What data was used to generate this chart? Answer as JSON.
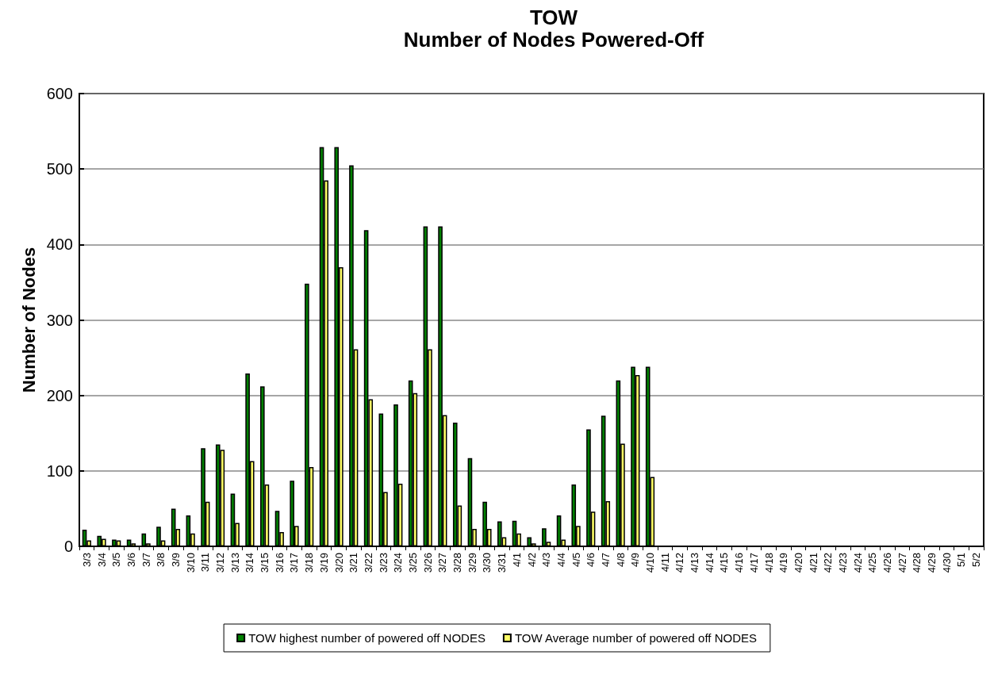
{
  "chart_data": {
    "type": "bar",
    "title": "TOW",
    "subtitle": "Number of Nodes Powered-Off",
    "ylabel": "Number of Nodes",
    "categories": [
      "3/3",
      "3/4",
      "3/5",
      "3/6",
      "3/7",
      "3/8",
      "3/9",
      "3/10",
      "3/11",
      "3/12",
      "3/13",
      "3/14",
      "3/15",
      "3/16",
      "3/17",
      "3/18",
      "3/19",
      "3/20",
      "3/21",
      "3/22",
      "3/23",
      "3/24",
      "3/25",
      "3/26",
      "3/27",
      "3/28",
      "3/29",
      "3/30",
      "3/31",
      "4/1",
      "4/2",
      "4/3",
      "4/4",
      "4/5",
      "4/6",
      "4/7",
      "4/8",
      "4/9",
      "4/10",
      "4/11",
      "4/12",
      "4/13",
      "4/14",
      "4/15",
      "4/16",
      "4/17",
      "4/18",
      "4/19",
      "4/20",
      "4/21",
      "4/22",
      "4/23",
      "4/24",
      "4/25",
      "4/26",
      "4/27",
      "4/28",
      "4/29",
      "4/30",
      "5/1",
      "5/2"
    ],
    "series": [
      {
        "name": "TOW highest number of powered off NODES",
        "color": "#008000",
        "values": [
          22,
          14,
          9,
          9,
          17,
          26,
          50,
          41,
          130,
          135,
          70,
          229,
          212,
          47,
          87,
          348,
          529,
          529,
          505,
          419,
          176,
          188,
          220,
          424,
          424,
          164,
          117,
          59,
          33,
          34,
          12,
          24,
          41,
          82,
          155,
          173,
          220,
          238,
          238,
          null,
          null,
          null,
          null,
          null,
          null,
          null,
          null,
          null,
          null,
          null,
          null,
          null,
          null,
          null,
          null,
          null,
          null,
          null,
          null,
          null,
          null
        ]
      },
      {
        "name": "TOW Average number of powered off NODES",
        "color": "#ffff66",
        "values": [
          8,
          10,
          8,
          4,
          4,
          8,
          23,
          17,
          59,
          128,
          31,
          113,
          82,
          19,
          27,
          105,
          485,
          370,
          261,
          195,
          72,
          83,
          203,
          261,
          174,
          54,
          23,
          23,
          12,
          17,
          4,
          6,
          9,
          27,
          46,
          60,
          136,
          227,
          92,
          null,
          null,
          null,
          null,
          null,
          null,
          null,
          null,
          null,
          null,
          null,
          null,
          null,
          null,
          null,
          null,
          null,
          null,
          null,
          null,
          null,
          null
        ]
      }
    ],
    "ylim": [
      0,
      600
    ],
    "yticks": [
      0,
      100,
      200,
      300,
      400,
      500,
      600
    ],
    "grid": "y",
    "legend": "bottom"
  }
}
